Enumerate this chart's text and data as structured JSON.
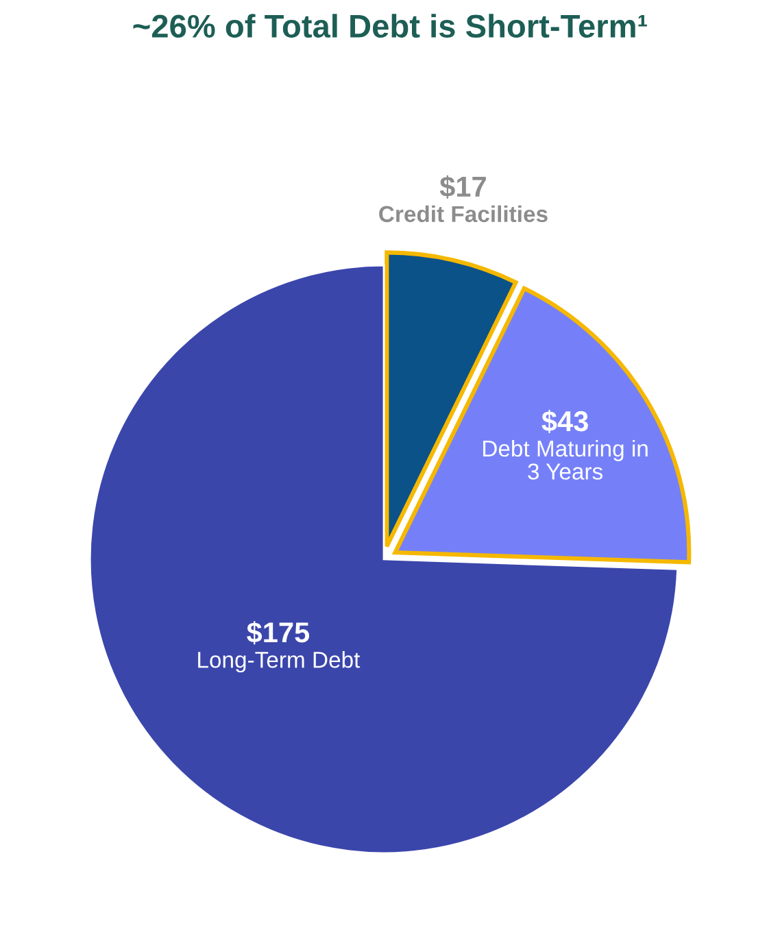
{
  "chart_data": {
    "type": "pie",
    "title": "~26% of Total Debt is Short-Term¹",
    "categories": [
      "Credit Facilities",
      "Debt Maturing in\n3 Years",
      "Long-Term Debt"
    ],
    "values": [
      17,
      43,
      175
    ],
    "value_labels": [
      "$17",
      "$43",
      "$175"
    ],
    "colors": [
      "#0b5288",
      "#7580f8",
      "#3b46ab"
    ]
  }
}
